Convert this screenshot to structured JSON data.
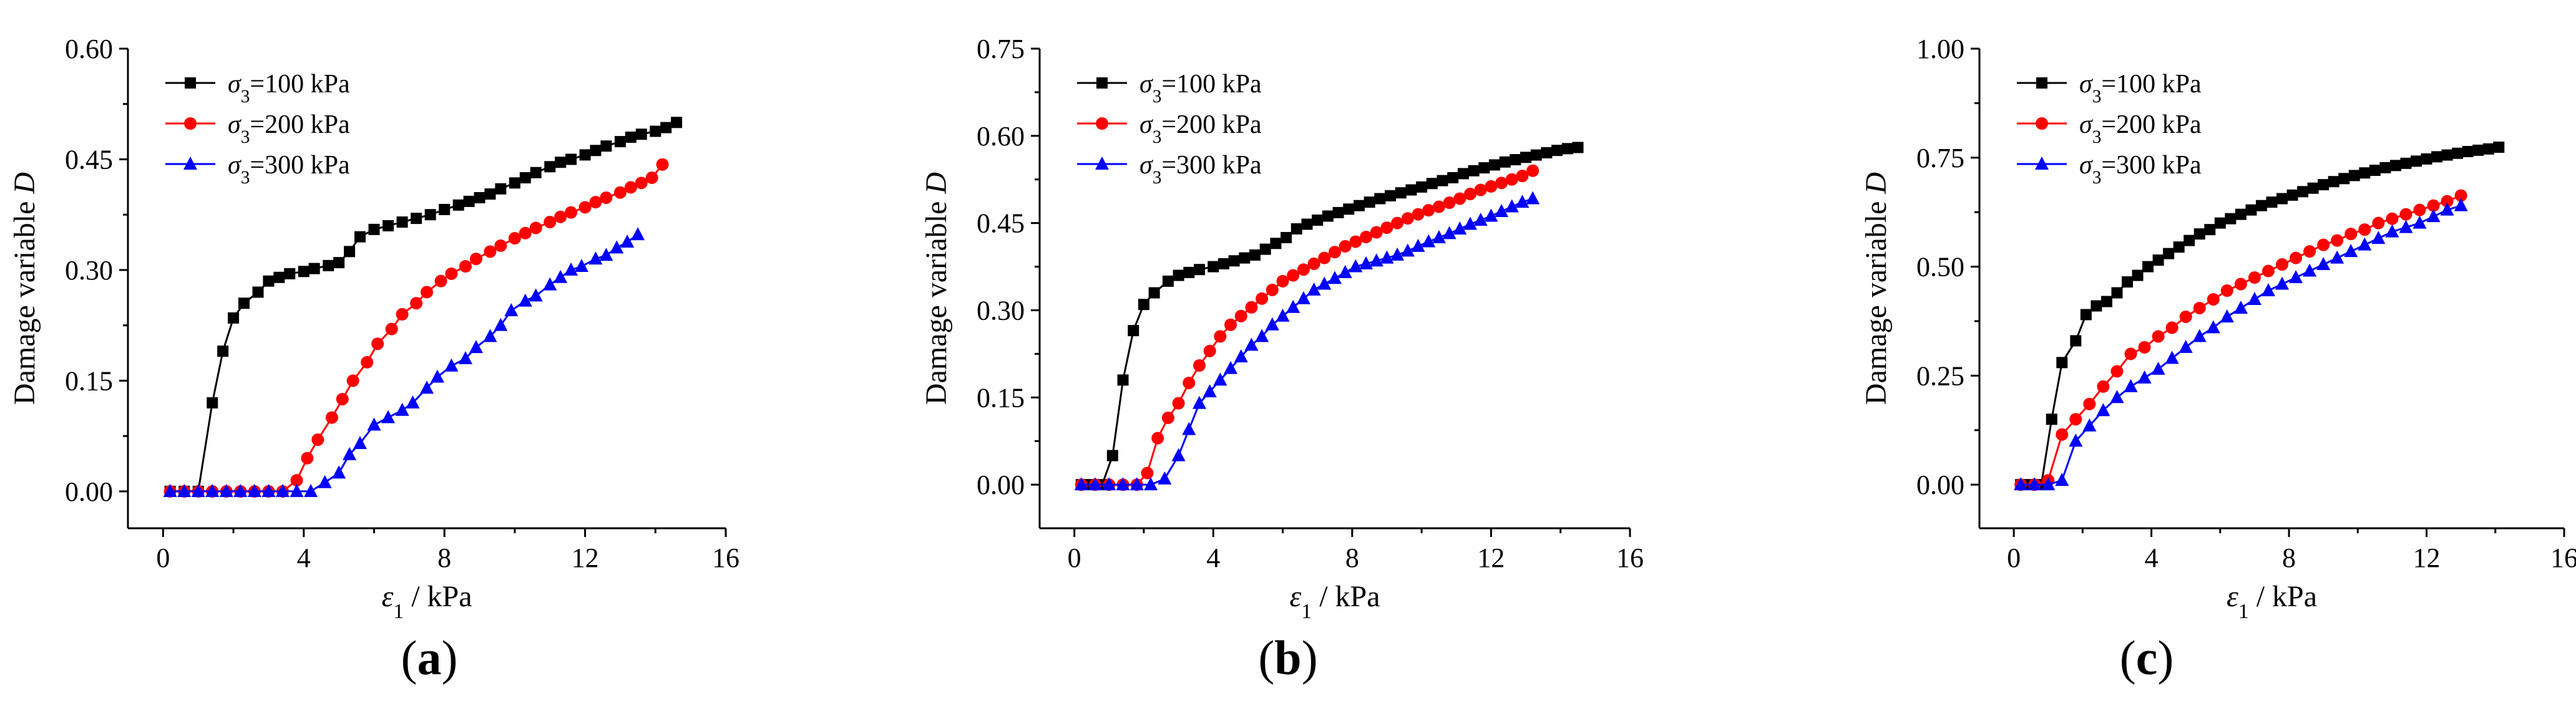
{
  "chart_data": [
    {
      "id": "a",
      "panel_label": "a",
      "type": "line",
      "xlabel": "ε1 / kPa",
      "ylabel": "Damage variable D",
      "xlim": [
        -1,
        16
      ],
      "ylim": [
        -0.05,
        0.6
      ],
      "xticks": [
        "0",
        "4",
        "8",
        "12",
        "16"
      ],
      "yticks": [
        "0.00",
        "0.15",
        "0.30",
        "0.45",
        "0.60"
      ],
      "legend_position": "top-left",
      "series": [
        {
          "name": "σ3=100 kPa",
          "color": "#000000",
          "marker": "square",
          "x": [
            0.2,
            0.6,
            1.0,
            1.4,
            1.7,
            2.0,
            2.3,
            2.7,
            3.0,
            3.3,
            3.6,
            4.0,
            4.3,
            4.7,
            5.0,
            5.3,
            5.6,
            6.0,
            6.4,
            6.8,
            7.2,
            7.6,
            8.0,
            8.4,
            8.7,
            9.0,
            9.3,
            9.6,
            10.0,
            10.3,
            10.6,
            11.0,
            11.3,
            11.6,
            12.0,
            12.3,
            12.6,
            13.0,
            13.3,
            13.6,
            14.0,
            14.3,
            14.6
          ],
          "y": [
            0.0,
            0.0,
            0.0,
            0.12,
            0.19,
            0.235,
            0.255,
            0.27,
            0.285,
            0.29,
            0.295,
            0.298,
            0.302,
            0.306,
            0.31,
            0.325,
            0.345,
            0.355,
            0.36,
            0.365,
            0.37,
            0.375,
            0.382,
            0.388,
            0.393,
            0.398,
            0.403,
            0.41,
            0.418,
            0.425,
            0.432,
            0.44,
            0.446,
            0.45,
            0.456,
            0.462,
            0.468,
            0.474,
            0.48,
            0.484,
            0.488,
            0.493,
            0.5
          ]
        },
        {
          "name": "σ3=200 kPa",
          "color": "#ff0000",
          "marker": "circle",
          "x": [
            0.2,
            0.6,
            1.0,
            1.4,
            1.8,
            2.2,
            2.6,
            3.0,
            3.4,
            3.8,
            4.1,
            4.4,
            4.8,
            5.1,
            5.4,
            5.8,
            6.1,
            6.5,
            6.8,
            7.2,
            7.5,
            7.9,
            8.2,
            8.6,
            8.9,
            9.3,
            9.6,
            10.0,
            10.3,
            10.6,
            11.0,
            11.3,
            11.6,
            12.0,
            12.3,
            12.6,
            13.0,
            13.3,
            13.6,
            13.9,
            14.2
          ],
          "y": [
            0.0,
            0.0,
            0.0,
            0.0,
            0.0,
            0.0,
            0.0,
            0.0,
            0.0,
            0.015,
            0.045,
            0.07,
            0.1,
            0.125,
            0.15,
            0.175,
            0.2,
            0.22,
            0.24,
            0.255,
            0.27,
            0.285,
            0.295,
            0.305,
            0.315,
            0.325,
            0.333,
            0.343,
            0.35,
            0.357,
            0.365,
            0.372,
            0.378,
            0.385,
            0.392,
            0.398,
            0.405,
            0.412,
            0.418,
            0.425,
            0.443
          ]
        },
        {
          "name": "σ3=300 kPa",
          "color": "#0000ff",
          "marker": "triangle",
          "x": [
            0.2,
            0.6,
            1.0,
            1.4,
            1.8,
            2.2,
            2.6,
            3.0,
            3.4,
            3.8,
            4.2,
            4.6,
            5.0,
            5.3,
            5.6,
            6.0,
            6.4,
            6.8,
            7.1,
            7.5,
            7.8,
            8.2,
            8.6,
            8.9,
            9.3,
            9.6,
            9.9,
            10.3,
            10.6,
            11.0,
            11.3,
            11.6,
            11.9,
            12.3,
            12.6,
            12.9,
            13.2,
            13.5
          ],
          "y": [
            0.0,
            0.0,
            0.0,
            0.0,
            0.0,
            0.0,
            0.0,
            0.0,
            0.0,
            0.0,
            0.0,
            0.012,
            0.025,
            0.05,
            0.065,
            0.09,
            0.1,
            0.11,
            0.12,
            0.14,
            0.155,
            0.17,
            0.18,
            0.195,
            0.21,
            0.225,
            0.245,
            0.258,
            0.265,
            0.28,
            0.29,
            0.3,
            0.305,
            0.315,
            0.32,
            0.33,
            0.338,
            0.348
          ]
        }
      ]
    },
    {
      "id": "b",
      "panel_label": "b",
      "type": "line",
      "xlabel": "ε1 / kPa",
      "ylabel": "Damage variable D",
      "xlim": [
        -1,
        16
      ],
      "ylim": [
        -0.075,
        0.75
      ],
      "xticks": [
        "0",
        "4",
        "8",
        "12",
        "16"
      ],
      "yticks": [
        "0.00",
        "0.15",
        "0.30",
        "0.45",
        "0.60",
        "0.75"
      ],
      "legend_position": "top-left",
      "series": [
        {
          "name": "σ3=100 kPa",
          "color": "#000000",
          "marker": "square",
          "x": [
            0.2,
            0.5,
            0.8,
            1.1,
            1.4,
            1.7,
            2.0,
            2.3,
            2.7,
            3.0,
            3.3,
            3.6,
            4.0,
            4.3,
            4.6,
            4.9,
            5.2,
            5.5,
            5.8,
            6.1,
            6.4,
            6.7,
            7.0,
            7.3,
            7.6,
            7.9,
            8.2,
            8.5,
            8.8,
            9.1,
            9.4,
            9.7,
            10.0,
            10.3,
            10.6,
            10.9,
            11.2,
            11.5,
            11.8,
            12.1,
            12.4,
            12.7,
            13.0,
            13.3,
            13.6,
            13.9,
            14.2,
            14.5
          ],
          "y": [
            0.0,
            0.0,
            0.0,
            0.05,
            0.18,
            0.265,
            0.31,
            0.33,
            0.35,
            0.36,
            0.365,
            0.37,
            0.375,
            0.38,
            0.385,
            0.39,
            0.395,
            0.405,
            0.415,
            0.425,
            0.44,
            0.448,
            0.455,
            0.462,
            0.468,
            0.474,
            0.48,
            0.486,
            0.492,
            0.497,
            0.502,
            0.507,
            0.512,
            0.518,
            0.523,
            0.528,
            0.535,
            0.54,
            0.545,
            0.55,
            0.555,
            0.559,
            0.563,
            0.567,
            0.571,
            0.575,
            0.578,
            0.58
          ]
        },
        {
          "name": "σ3=200 kPa",
          "color": "#ff0000",
          "marker": "circle",
          "x": [
            0.2,
            0.6,
            1.0,
            1.4,
            1.8,
            2.1,
            2.4,
            2.7,
            3.0,
            3.3,
            3.6,
            3.9,
            4.2,
            4.5,
            4.8,
            5.1,
            5.4,
            5.7,
            6.0,
            6.3,
            6.6,
            6.9,
            7.2,
            7.5,
            7.8,
            8.1,
            8.4,
            8.7,
            9.0,
            9.3,
            9.6,
            9.9,
            10.2,
            10.5,
            10.8,
            11.1,
            11.4,
            11.7,
            12.0,
            12.3,
            12.6,
            12.9,
            13.2
          ],
          "y": [
            0.0,
            0.0,
            0.0,
            0.0,
            0.0,
            0.02,
            0.08,
            0.115,
            0.14,
            0.175,
            0.205,
            0.23,
            0.255,
            0.275,
            0.29,
            0.305,
            0.32,
            0.335,
            0.35,
            0.36,
            0.37,
            0.38,
            0.39,
            0.4,
            0.41,
            0.418,
            0.426,
            0.434,
            0.442,
            0.45,
            0.458,
            0.465,
            0.472,
            0.478,
            0.485,
            0.492,
            0.5,
            0.507,
            0.513,
            0.519,
            0.525,
            0.531,
            0.54
          ]
        },
        {
          "name": "σ3=300 kPa",
          "color": "#0000ff",
          "marker": "triangle",
          "x": [
            0.2,
            0.6,
            1.0,
            1.4,
            1.8,
            2.2,
            2.6,
            3.0,
            3.3,
            3.6,
            3.9,
            4.2,
            4.5,
            4.8,
            5.1,
            5.4,
            5.7,
            6.0,
            6.3,
            6.6,
            6.9,
            7.2,
            7.5,
            7.8,
            8.1,
            8.4,
            8.7,
            9.0,
            9.3,
            9.6,
            9.9,
            10.2,
            10.5,
            10.8,
            11.1,
            11.4,
            11.7,
            12.0,
            12.3,
            12.6,
            12.9,
            13.2
          ],
          "y": [
            0.0,
            0.0,
            0.0,
            0.0,
            0.0,
            0.0,
            0.01,
            0.05,
            0.095,
            0.14,
            0.16,
            0.18,
            0.2,
            0.22,
            0.24,
            0.255,
            0.275,
            0.29,
            0.305,
            0.32,
            0.335,
            0.345,
            0.355,
            0.365,
            0.375,
            0.38,
            0.385,
            0.39,
            0.395,
            0.402,
            0.41,
            0.418,
            0.425,
            0.432,
            0.44,
            0.448,
            0.455,
            0.462,
            0.47,
            0.478,
            0.486,
            0.492
          ]
        }
      ]
    },
    {
      "id": "c",
      "panel_label": "c",
      "type": "line",
      "xlabel": "ε1 / kPa",
      "ylabel": "Damage variable D",
      "xlim": [
        -1,
        16
      ],
      "ylim": [
        -0.1,
        1.0
      ],
      "xticks": [
        "0",
        "4",
        "8",
        "12",
        "16"
      ],
      "yticks": [
        "0.00",
        "0.25",
        "0.50",
        "0.75",
        "1.00"
      ],
      "legend_position": "top-left",
      "series": [
        {
          "name": "σ3=100 kPa",
          "color": "#000000",
          "marker": "square",
          "x": [
            0.2,
            0.5,
            0.8,
            1.1,
            1.4,
            1.8,
            2.1,
            2.4,
            2.7,
            3.0,
            3.3,
            3.6,
            3.9,
            4.2,
            4.5,
            4.8,
            5.1,
            5.4,
            5.7,
            6.0,
            6.3,
            6.6,
            6.9,
            7.2,
            7.5,
            7.8,
            8.1,
            8.4,
            8.7,
            9.0,
            9.3,
            9.6,
            9.9,
            10.2,
            10.5,
            10.8,
            11.1,
            11.4,
            11.7,
            12.0,
            12.3,
            12.6,
            12.9,
            13.2,
            13.5,
            13.8,
            14.1
          ],
          "y": [
            0.0,
            0.0,
            0.0,
            0.15,
            0.28,
            0.33,
            0.39,
            0.41,
            0.42,
            0.44,
            0.465,
            0.48,
            0.5,
            0.515,
            0.53,
            0.545,
            0.56,
            0.575,
            0.585,
            0.6,
            0.61,
            0.62,
            0.63,
            0.64,
            0.648,
            0.656,
            0.664,
            0.672,
            0.68,
            0.688,
            0.695,
            0.702,
            0.709,
            0.715,
            0.721,
            0.727,
            0.732,
            0.737,
            0.742,
            0.747,
            0.752,
            0.756,
            0.76,
            0.764,
            0.767,
            0.77,
            0.774
          ]
        },
        {
          "name": "σ3=200 kPa",
          "color": "#ff0000",
          "marker": "circle",
          "x": [
            0.2,
            0.6,
            1.0,
            1.4,
            1.8,
            2.2,
            2.6,
            3.0,
            3.4,
            3.8,
            4.2,
            4.6,
            5.0,
            5.4,
            5.8,
            6.2,
            6.6,
            7.0,
            7.4,
            7.8,
            8.2,
            8.6,
            9.0,
            9.4,
            9.8,
            10.2,
            10.6,
            11.0,
            11.4,
            11.8,
            12.2,
            12.6,
            13.0
          ],
          "y": [
            0.0,
            0.0,
            0.01,
            0.115,
            0.15,
            0.185,
            0.225,
            0.26,
            0.3,
            0.315,
            0.34,
            0.36,
            0.385,
            0.405,
            0.425,
            0.445,
            0.46,
            0.475,
            0.49,
            0.505,
            0.52,
            0.535,
            0.55,
            0.56,
            0.575,
            0.585,
            0.6,
            0.61,
            0.62,
            0.63,
            0.64,
            0.65,
            0.663
          ]
        },
        {
          "name": "σ3=300 kPa",
          "color": "#0000ff",
          "marker": "triangle",
          "x": [
            0.2,
            0.6,
            1.0,
            1.4,
            1.8,
            2.2,
            2.6,
            3.0,
            3.4,
            3.8,
            4.2,
            4.6,
            5.0,
            5.4,
            5.8,
            6.2,
            6.6,
            7.0,
            7.4,
            7.8,
            8.2,
            8.6,
            9.0,
            9.4,
            9.8,
            10.2,
            10.6,
            11.0,
            11.4,
            11.8,
            12.2,
            12.6,
            13.0
          ],
          "y": [
            0.0,
            0.0,
            0.0,
            0.01,
            0.1,
            0.135,
            0.17,
            0.2,
            0.225,
            0.245,
            0.265,
            0.29,
            0.315,
            0.34,
            0.36,
            0.385,
            0.405,
            0.425,
            0.445,
            0.46,
            0.475,
            0.49,
            0.505,
            0.52,
            0.535,
            0.55,
            0.565,
            0.58,
            0.59,
            0.6,
            0.615,
            0.63,
            0.64
          ]
        }
      ]
    }
  ]
}
